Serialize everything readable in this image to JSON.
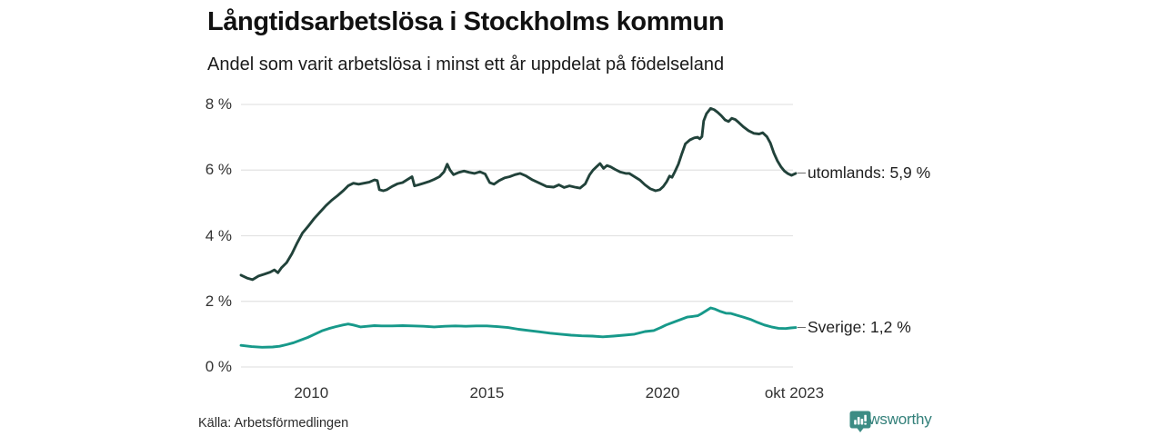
{
  "header": {
    "title": "Långtidsarbetslösa i Stockholms kommun",
    "subtitle": "Andel som varit arbetslösa i minst ett år uppdelat på födelseland"
  },
  "footer": {
    "source": "Källa: Arbetsförmedlingen",
    "brand": "Newsworthy",
    "brand_color": "#33807a",
    "brand_icon": "bar-chart-speech-bubble-icon",
    "brand_icon_color": "#3c8c84"
  },
  "chart_data": {
    "type": "line",
    "title": "Långtidsarbetslösa i Stockholms kommun",
    "subtitle": "Andel som varit arbetslösa i minst ett år uppdelat på födelseland",
    "grid": "horizontal",
    "legend_position": "right-end-labels",
    "grid_color": "#e3e3e3",
    "y_axis": {
      "unit": "%",
      "range": [
        0,
        8
      ],
      "tick_values": [
        8,
        6,
        4,
        2,
        0
      ],
      "tick_labels": [
        "8 %",
        "6 %",
        "4 %",
        "2 %",
        "0 %"
      ]
    },
    "x_axis": {
      "range": [
        2008.0,
        2023.79
      ],
      "ticks": [
        {
          "label": "2010",
          "year": 2010.0
        },
        {
          "label": "2015",
          "year": 2015.0
        },
        {
          "label": "2020",
          "year": 2020.0
        },
        {
          "label": "okt 2023",
          "year": 2023.75
        }
      ]
    },
    "series": [
      {
        "name": "utomlands",
        "end_label": "utomlands: 5,9 %",
        "last_value": 5.9,
        "color": "#21423a",
        "points": [
          [
            2008.0,
            2.8
          ],
          [
            2008.17,
            2.71
          ],
          [
            2008.33,
            2.66
          ],
          [
            2008.5,
            2.77
          ],
          [
            2008.67,
            2.83
          ],
          [
            2008.83,
            2.89
          ],
          [
            2008.95,
            2.96
          ],
          [
            2009.05,
            2.87
          ],
          [
            2009.15,
            3.02
          ],
          [
            2009.3,
            3.18
          ],
          [
            2009.45,
            3.45
          ],
          [
            2009.6,
            3.78
          ],
          [
            2009.75,
            4.08
          ],
          [
            2009.92,
            4.3
          ],
          [
            2010.08,
            4.52
          ],
          [
            2010.25,
            4.72
          ],
          [
            2010.42,
            4.92
          ],
          [
            2010.58,
            5.08
          ],
          [
            2010.75,
            5.22
          ],
          [
            2010.92,
            5.38
          ],
          [
            2011.05,
            5.52
          ],
          [
            2011.2,
            5.6
          ],
          [
            2011.35,
            5.57
          ],
          [
            2011.5,
            5.6
          ],
          [
            2011.65,
            5.63
          ],
          [
            2011.8,
            5.7
          ],
          [
            2011.88,
            5.68
          ],
          [
            2011.94,
            5.4
          ],
          [
            2012.05,
            5.37
          ],
          [
            2012.15,
            5.4
          ],
          [
            2012.3,
            5.5
          ],
          [
            2012.45,
            5.58
          ],
          [
            2012.6,
            5.62
          ],
          [
            2012.75,
            5.72
          ],
          [
            2012.87,
            5.8
          ],
          [
            2012.94,
            5.52
          ],
          [
            2013.05,
            5.55
          ],
          [
            2013.2,
            5.6
          ],
          [
            2013.35,
            5.65
          ],
          [
            2013.5,
            5.72
          ],
          [
            2013.65,
            5.8
          ],
          [
            2013.78,
            5.95
          ],
          [
            2013.87,
            6.18
          ],
          [
            2013.95,
            6.0
          ],
          [
            2014.05,
            5.86
          ],
          [
            2014.2,
            5.93
          ],
          [
            2014.35,
            5.97
          ],
          [
            2014.5,
            5.93
          ],
          [
            2014.65,
            5.9
          ],
          [
            2014.8,
            5.95
          ],
          [
            2014.95,
            5.88
          ],
          [
            2015.08,
            5.62
          ],
          [
            2015.2,
            5.57
          ],
          [
            2015.35,
            5.68
          ],
          [
            2015.5,
            5.76
          ],
          [
            2015.65,
            5.8
          ],
          [
            2015.8,
            5.86
          ],
          [
            2015.95,
            5.9
          ],
          [
            2016.1,
            5.83
          ],
          [
            2016.3,
            5.7
          ],
          [
            2016.5,
            5.6
          ],
          [
            2016.7,
            5.5
          ],
          [
            2016.9,
            5.48
          ],
          [
            2017.05,
            5.55
          ],
          [
            2017.2,
            5.47
          ],
          [
            2017.35,
            5.52
          ],
          [
            2017.5,
            5.48
          ],
          [
            2017.65,
            5.45
          ],
          [
            2017.8,
            5.58
          ],
          [
            2017.92,
            5.85
          ],
          [
            2018.02,
            6.0
          ],
          [
            2018.12,
            6.1
          ],
          [
            2018.22,
            6.2
          ],
          [
            2018.32,
            6.05
          ],
          [
            2018.42,
            6.14
          ],
          [
            2018.52,
            6.1
          ],
          [
            2018.65,
            6.02
          ],
          [
            2018.8,
            5.94
          ],
          [
            2018.95,
            5.9
          ],
          [
            2019.05,
            5.9
          ],
          [
            2019.2,
            5.8
          ],
          [
            2019.35,
            5.7
          ],
          [
            2019.5,
            5.55
          ],
          [
            2019.65,
            5.43
          ],
          [
            2019.8,
            5.37
          ],
          [
            2019.92,
            5.4
          ],
          [
            2020.02,
            5.5
          ],
          [
            2020.12,
            5.65
          ],
          [
            2020.2,
            5.82
          ],
          [
            2020.27,
            5.78
          ],
          [
            2020.35,
            5.95
          ],
          [
            2020.45,
            6.18
          ],
          [
            2020.55,
            6.5
          ],
          [
            2020.65,
            6.8
          ],
          [
            2020.78,
            6.92
          ],
          [
            2020.9,
            6.98
          ],
          [
            2021.0,
            7.0
          ],
          [
            2021.06,
            6.95
          ],
          [
            2021.12,
            7.02
          ],
          [
            2021.17,
            7.5
          ],
          [
            2021.25,
            7.72
          ],
          [
            2021.37,
            7.88
          ],
          [
            2021.47,
            7.84
          ],
          [
            2021.57,
            7.76
          ],
          [
            2021.67,
            7.66
          ],
          [
            2021.78,
            7.53
          ],
          [
            2021.88,
            7.48
          ],
          [
            2021.97,
            7.58
          ],
          [
            2022.07,
            7.54
          ],
          [
            2022.17,
            7.45
          ],
          [
            2022.3,
            7.32
          ],
          [
            2022.45,
            7.2
          ],
          [
            2022.6,
            7.12
          ],
          [
            2022.75,
            7.1
          ],
          [
            2022.85,
            7.14
          ],
          [
            2022.97,
            7.02
          ],
          [
            2023.07,
            6.82
          ],
          [
            2023.17,
            6.52
          ],
          [
            2023.27,
            6.28
          ],
          [
            2023.37,
            6.1
          ],
          [
            2023.47,
            5.97
          ],
          [
            2023.57,
            5.89
          ],
          [
            2023.67,
            5.84
          ],
          [
            2023.79,
            5.9
          ]
        ]
      },
      {
        "name": "Sverige",
        "end_label": "Sverige: 1,2 %",
        "last_value": 1.2,
        "color": "#17998a",
        "points": [
          [
            2008.0,
            0.66
          ],
          [
            2008.3,
            0.62
          ],
          [
            2008.6,
            0.6
          ],
          [
            2008.9,
            0.61
          ],
          [
            2009.1,
            0.63
          ],
          [
            2009.3,
            0.68
          ],
          [
            2009.5,
            0.74
          ],
          [
            2009.7,
            0.82
          ],
          [
            2009.9,
            0.9
          ],
          [
            2010.1,
            1.0
          ],
          [
            2010.3,
            1.1
          ],
          [
            2010.5,
            1.17
          ],
          [
            2010.7,
            1.23
          ],
          [
            2010.9,
            1.28
          ],
          [
            2011.05,
            1.31
          ],
          [
            2011.2,
            1.28
          ],
          [
            2011.4,
            1.22
          ],
          [
            2011.6,
            1.24
          ],
          [
            2011.8,
            1.26
          ],
          [
            2012.0,
            1.25
          ],
          [
            2012.3,
            1.25
          ],
          [
            2012.6,
            1.26
          ],
          [
            2012.9,
            1.25
          ],
          [
            2013.2,
            1.24
          ],
          [
            2013.5,
            1.22
          ],
          [
            2013.8,
            1.24
          ],
          [
            2014.1,
            1.25
          ],
          [
            2014.4,
            1.24
          ],
          [
            2014.7,
            1.25
          ],
          [
            2015.0,
            1.25
          ],
          [
            2015.3,
            1.23
          ],
          [
            2015.6,
            1.2
          ],
          [
            2015.9,
            1.15
          ],
          [
            2016.2,
            1.11
          ],
          [
            2016.5,
            1.07
          ],
          [
            2016.8,
            1.03
          ],
          [
            2017.1,
            1.0
          ],
          [
            2017.4,
            0.97
          ],
          [
            2017.7,
            0.95
          ],
          [
            2018.0,
            0.94
          ],
          [
            2018.3,
            0.92
          ],
          [
            2018.6,
            0.94
          ],
          [
            2018.9,
            0.97
          ],
          [
            2019.2,
            1.0
          ],
          [
            2019.5,
            1.08
          ],
          [
            2019.75,
            1.11
          ],
          [
            2019.95,
            1.2
          ],
          [
            2020.1,
            1.28
          ],
          [
            2020.3,
            1.36
          ],
          [
            2020.5,
            1.44
          ],
          [
            2020.7,
            1.52
          ],
          [
            2020.85,
            1.54
          ],
          [
            2021.0,
            1.56
          ],
          [
            2021.1,
            1.62
          ],
          [
            2021.25,
            1.72
          ],
          [
            2021.37,
            1.8
          ],
          [
            2021.5,
            1.76
          ],
          [
            2021.65,
            1.69
          ],
          [
            2021.8,
            1.64
          ],
          [
            2021.95,
            1.63
          ],
          [
            2022.1,
            1.58
          ],
          [
            2022.3,
            1.52
          ],
          [
            2022.5,
            1.45
          ],
          [
            2022.7,
            1.36
          ],
          [
            2022.9,
            1.28
          ],
          [
            2023.1,
            1.22
          ],
          [
            2023.3,
            1.18
          ],
          [
            2023.5,
            1.17
          ],
          [
            2023.65,
            1.19
          ],
          [
            2023.79,
            1.2
          ]
        ]
      }
    ]
  }
}
